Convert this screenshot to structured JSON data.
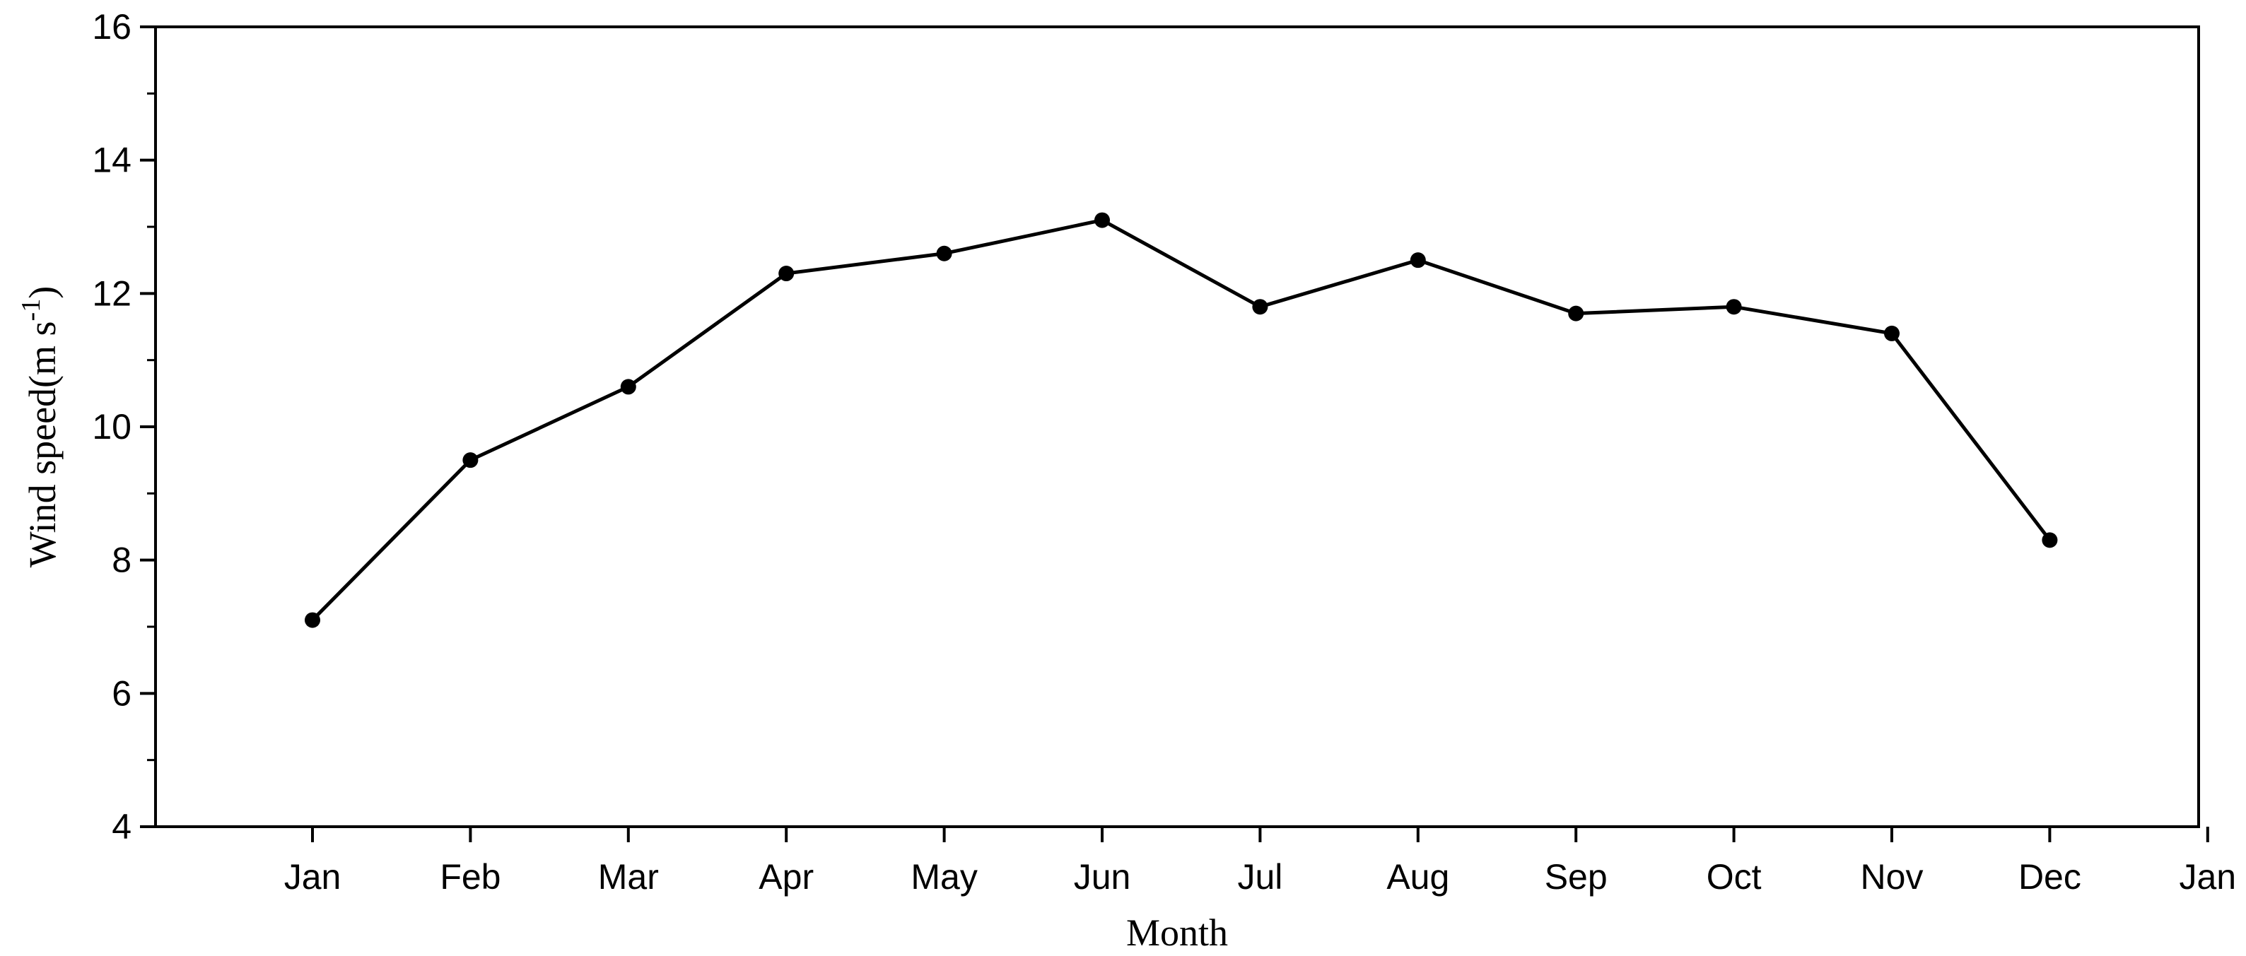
{
  "chart_data": {
    "type": "line",
    "title": "",
    "xlabel": "Month",
    "ylabel_main": "Wind speed(m s",
    "ylabel_sup": "-1",
    "ylabel_close": ")",
    "x_tick_labels": [
      "Jan",
      "Feb",
      "Mar",
      "Apr",
      "May",
      "Jun",
      "Jul",
      "Aug",
      "Sep",
      "Oct",
      "Nov",
      "Dec",
      "Jan"
    ],
    "y_tick_labels": [
      "4",
      "6",
      "8",
      "10",
      "12",
      "14",
      "16"
    ],
    "ylim": [
      4,
      16
    ],
    "y_ticks": [
      4,
      6,
      8,
      10,
      12,
      14,
      16
    ],
    "categories": [
      "Jan",
      "Feb",
      "Mar",
      "Apr",
      "May",
      "Jun",
      "Jul",
      "Aug",
      "Sep",
      "Oct",
      "Nov",
      "Dec"
    ],
    "values": [
      7.1,
      9.5,
      10.6,
      12.3,
      12.6,
      13.1,
      11.8,
      12.5,
      11.7,
      11.8,
      11.4,
      8.3
    ],
    "grid": false,
    "line_color": "#000000",
    "marker": "filled-circle"
  }
}
